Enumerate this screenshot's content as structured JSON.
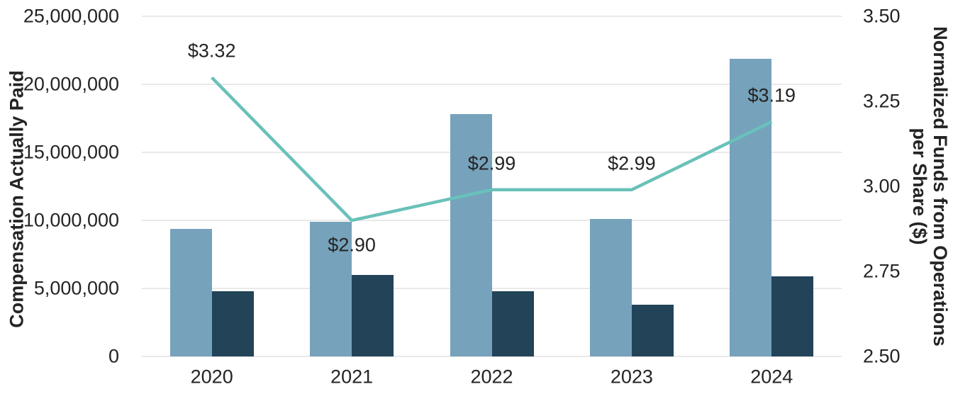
{
  "colors": {
    "background": "#ffffff",
    "text": "#252423",
    "gridline": "#e9e9e9",
    "bar_light_blue": "#76a2bc",
    "bar_dark_navy": "#224358",
    "line_teal": "#69c1b9"
  },
  "chart_data": {
    "type": "combo-bar-line",
    "title": "",
    "legend": "none",
    "grid": true,
    "categories": [
      "2020",
      "2021",
      "2022",
      "2023",
      "2024"
    ],
    "left_axis": {
      "label": "Compensation Actually Paid",
      "min": 0,
      "max": 25000000,
      "step": 5000000,
      "ticks": [
        {
          "value": 0,
          "label": "0"
        },
        {
          "value": 5000000,
          "label": "5,000,000"
        },
        {
          "value": 10000000,
          "label": "10,000,000"
        },
        {
          "value": 15000000,
          "label": "15,000,000"
        },
        {
          "value": 20000000,
          "label": "20,000,000"
        },
        {
          "value": 25000000,
          "label": "25,000,000"
        }
      ]
    },
    "right_axis": {
      "label_line1": "Normalized Funds from Operations",
      "label_line2": "per Share ($)",
      "min": 2.5,
      "max": 3.5,
      "step": 0.25,
      "ticks": [
        {
          "value": 2.5,
          "label": "2.50"
        },
        {
          "value": 2.75,
          "label": "2.75"
        },
        {
          "value": 3.0,
          "label": "3.00"
        },
        {
          "value": 3.25,
          "label": "3.25"
        },
        {
          "value": 3.5,
          "label": "3.50"
        }
      ]
    },
    "bar_series": [
      {
        "id": "light-blue",
        "axis": "left",
        "color": "#76a2bc",
        "values": [
          9400000,
          9900000,
          17800000,
          10100000,
          21900000
        ]
      },
      {
        "id": "dark-navy",
        "axis": "left",
        "color": "#224358",
        "values": [
          4800000,
          6000000,
          4800000,
          3800000,
          5900000
        ]
      }
    ],
    "line_series": {
      "id": "normalized-ffo-per-share",
      "axis": "right",
      "color": "#69c1b9",
      "values": [
        3.32,
        2.9,
        2.99,
        2.99,
        3.19
      ],
      "labels": [
        "$3.32",
        "$2.90",
        "$2.99",
        "$2.99",
        "$3.19"
      ],
      "label_placement": [
        "above",
        "below",
        "above",
        "above",
        "above"
      ]
    }
  }
}
